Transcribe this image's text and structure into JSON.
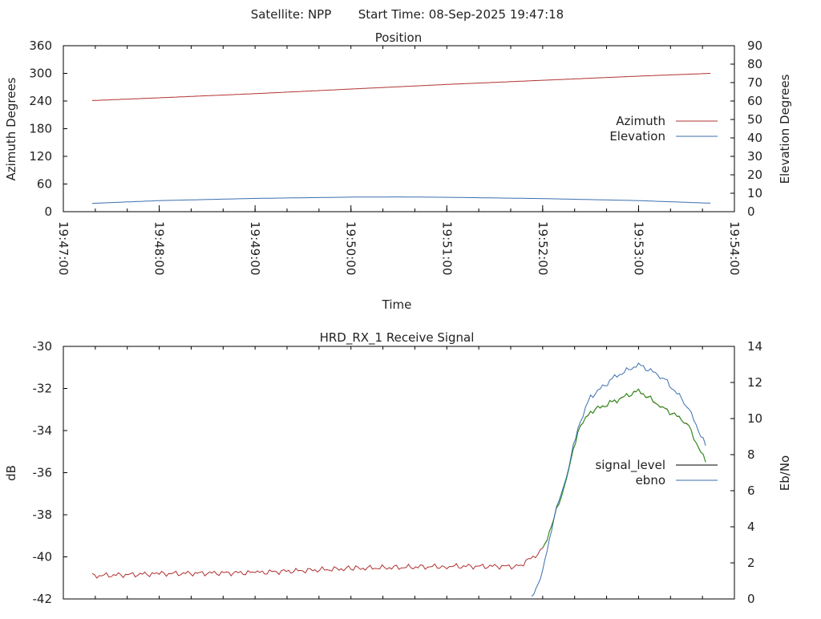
{
  "header": {
    "satellite_label": "Satellite: NPP",
    "start_time_label": "Start Time: 08-Sep-2025 19:47:18"
  },
  "chart_data": [
    {
      "type": "line",
      "title": "Position",
      "xlabel": "Time",
      "ylabel": "Azimuth Degrees",
      "y2label": "Elevation Degrees",
      "xlim": [
        "19:47:00",
        "19:54:00"
      ],
      "x_ticks": [
        "19:47:00",
        "19:48:00",
        "19:49:00",
        "19:50:00",
        "19:51:00",
        "19:52:00",
        "19:53:00",
        "19:54:00"
      ],
      "ylim": [
        0,
        360
      ],
      "y_ticks": [
        "0",
        "60",
        "120",
        "180",
        "240",
        "300",
        "360"
      ],
      "y2lim": [
        0,
        90
      ],
      "y2_ticks": [
        "0",
        "10",
        "20",
        "30",
        "40",
        "50",
        "60",
        "70",
        "80",
        "90"
      ],
      "legend_position": "right",
      "grid": false,
      "series": [
        {
          "name": "Azimuth",
          "axis": "y",
          "color": "#b03030",
          "x": [
            "19:47:18",
            "19:48:00",
            "19:49:00",
            "19:50:00",
            "19:51:00",
            "19:52:00",
            "19:53:00",
            "19:53:45"
          ],
          "values": [
            241,
            247,
            256,
            266,
            276,
            285,
            294,
            300
          ]
        },
        {
          "name": "Elevation",
          "axis": "y2",
          "color": "#3a6fb0",
          "x": [
            "19:47:18",
            "19:48:00",
            "19:49:00",
            "19:50:00",
            "19:50:30",
            "19:51:00",
            "19:52:00",
            "19:53:00",
            "19:53:45"
          ],
          "values": [
            4.5,
            6.0,
            7.2,
            7.9,
            8.0,
            7.8,
            7.1,
            6.0,
            4.6
          ]
        }
      ]
    },
    {
      "type": "line",
      "title": "HRD_RX_1 Receive Signal",
      "xlabel": "",
      "ylabel": "dB",
      "y2label": "Eb/No",
      "xlim": [
        "19:47:00",
        "19:54:00"
      ],
      "ylim": [
        -42,
        -30
      ],
      "y_ticks": [
        "-42",
        "-40",
        "-38",
        "-36",
        "-34",
        "-32",
        "-30"
      ],
      "y2lim": [
        0,
        14
      ],
      "y2_ticks": [
        "0",
        "2",
        "4",
        "6",
        "8",
        "10",
        "12",
        "14"
      ],
      "legend_position": "right",
      "grid": false,
      "series": [
        {
          "name": "signal_level",
          "axis": "y",
          "color": "#b03030",
          "x": [
            "19:47:18",
            "19:48:00",
            "19:49:00",
            "19:50:00",
            "19:51:00",
            "19:51:45",
            "19:52:00",
            "19:52:07",
            "19:52:15",
            "19:52:22",
            "19:52:30",
            "19:52:45",
            "19:53:00",
            "19:53:15",
            "19:53:30",
            "19:53:42"
          ],
          "values": [
            -40.9,
            -40.8,
            -40.75,
            -40.55,
            -40.45,
            -40.45,
            -39.7,
            -38.2,
            -36.3,
            -34.0,
            -33.1,
            -32.6,
            -32.1,
            -32.9,
            -33.6,
            -35.5
          ]
        },
        {
          "name": "signal_level_green_segment",
          "axis": "y",
          "color": "#1a9a1a",
          "x": [
            "19:52:00",
            "19:52:07",
            "19:52:15",
            "19:52:22",
            "19:52:30",
            "19:52:45",
            "19:53:00",
            "19:53:15",
            "19:53:30",
            "19:53:42"
          ],
          "values": [
            -39.7,
            -38.2,
            -36.3,
            -34.0,
            -33.1,
            -32.6,
            -32.1,
            -32.9,
            -33.6,
            -35.5
          ]
        },
        {
          "name": "ebno",
          "axis": "y2",
          "color": "#3a6fb0",
          "x": [
            "19:51:53",
            "19:52:00",
            "19:52:07",
            "19:52:15",
            "19:52:22",
            "19:52:30",
            "19:52:45",
            "19:53:00",
            "19:53:15",
            "19:53:30",
            "19:53:42"
          ],
          "values": [
            0,
            1.5,
            4.5,
            6.8,
            9.5,
            11.2,
            12.3,
            13.0,
            12.3,
            10.8,
            8.5
          ]
        }
      ],
      "legend": [
        "signal_level",
        "ebno"
      ],
      "legend_colors": [
        "#000000",
        "#3a6fb0"
      ]
    }
  ]
}
